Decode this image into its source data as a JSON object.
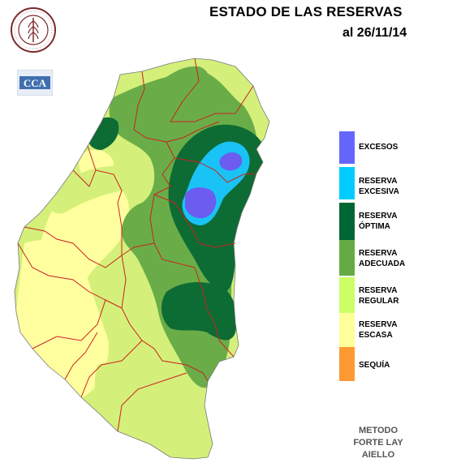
{
  "title": "ESTADO DE LAS RESERVAS",
  "date_label": "al 26/11/14",
  "seal_text": "BOLSA DE CEREALES DE ENTRE RIOS",
  "logo_text": "CCA",
  "legend": [
    {
      "label": "EXCESOS",
      "color": "#6666ff"
    },
    {
      "label": "RESERVA\nEXCESIVA",
      "color": "#00ccff"
    },
    {
      "label": "RESERVA\nÓPTIMA",
      "color": "#006633"
    },
    {
      "label": "RESERVA\nADECUADA",
      "color": "#66aa44"
    },
    {
      "label": "RESERVA\nREGULAR",
      "color": "#ccff66"
    },
    {
      "label": "RESERVA\nESCASA",
      "color": "#ffff99"
    },
    {
      "label": "SEQUÍA",
      "color": "#ff9933"
    }
  ],
  "method": "METODO\nFORTE LAY\nAIELLO",
  "colors": {
    "escasa": "#ffffa0",
    "regular": "#d4f07a",
    "adecuada": "#6aad48",
    "optima": "#0d6b34",
    "excesiva": "#19c3f5",
    "excesos": "#6c5cf0",
    "border": "#cc2222"
  }
}
